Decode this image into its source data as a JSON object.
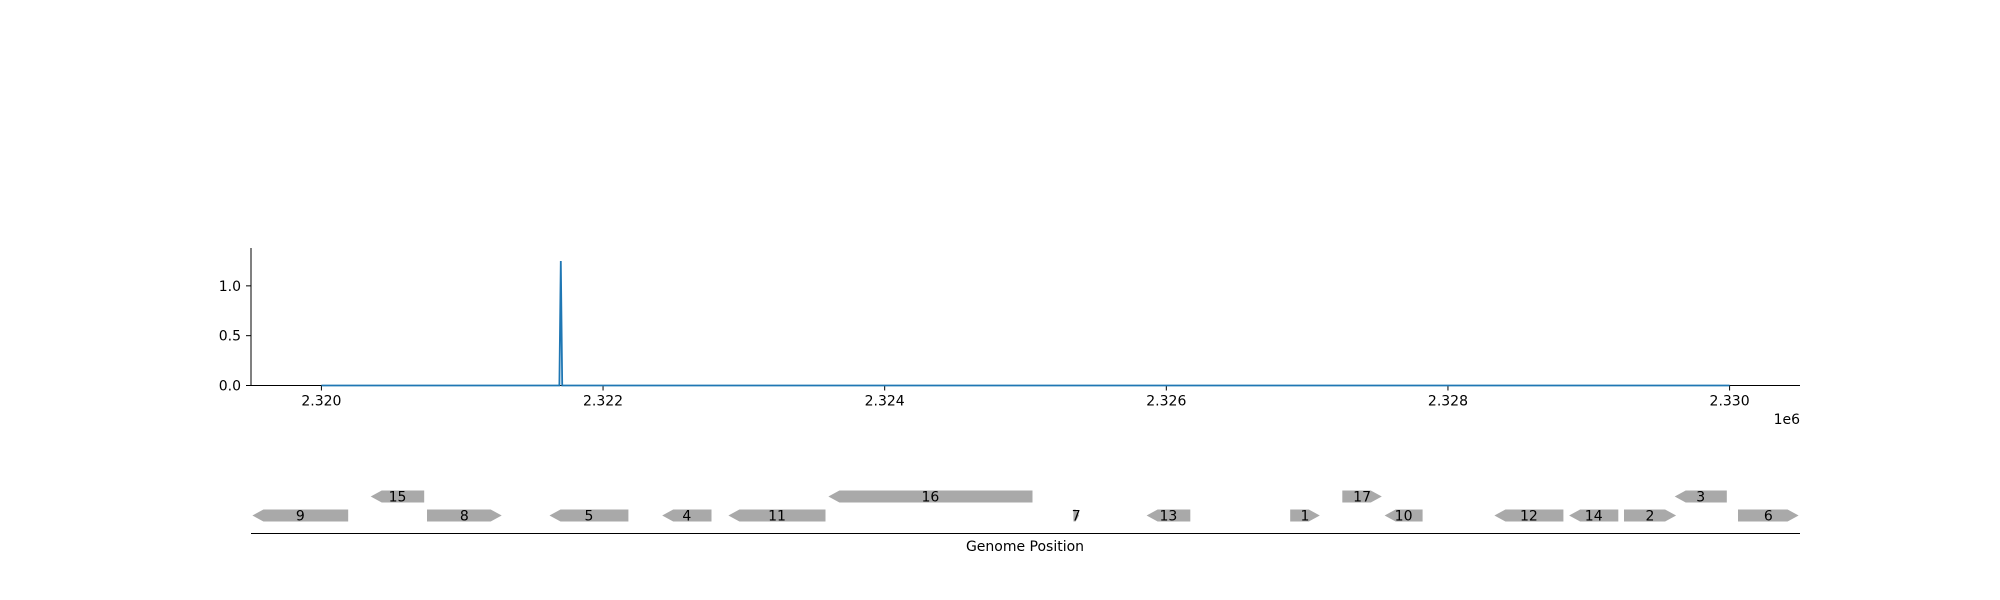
{
  "chart_data": [
    {
      "type": "line",
      "title": "",
      "xlabel": "",
      "ylabel": "",
      "x_offset_label": "1e6",
      "x_ticks": [
        2320000,
        2322000,
        2324000,
        2326000,
        2328000,
        2330000
      ],
      "x_tick_labels": [
        "2.320",
        "2.322",
        "2.324",
        "2.326",
        "2.328",
        "2.330"
      ],
      "y_ticks": [
        0.0,
        0.5,
        1.0
      ],
      "y_tick_labels": [
        "0.0",
        "0.5",
        "1.0"
      ],
      "xlim": [
        2319500,
        2330500
      ],
      "ylim": [
        0,
        1.38
      ],
      "grid": false,
      "line_color": "#1f77b4",
      "series": [
        {
          "x": [
            2320000,
            2321690,
            2321700,
            2321710,
            2330000
          ],
          "y": [
            0,
            0,
            1.25,
            0,
            0
          ]
        }
      ]
    },
    {
      "type": "gene-track",
      "xlabel": "Genome Position",
      "xlim": [
        2319500,
        2330500
      ],
      "gene_color": "#a9a9a9",
      "genes": [
        {
          "label": "9",
          "start": 2319510,
          "end": 2320190,
          "strand": -1,
          "row": 0
        },
        {
          "label": "15",
          "start": 2320350,
          "end": 2320730,
          "strand": -1,
          "row": 1
        },
        {
          "label": "8",
          "start": 2320750,
          "end": 2321280,
          "strand": 1,
          "row": 0
        },
        {
          "label": "5",
          "start": 2321620,
          "end": 2322180,
          "strand": -1,
          "row": 0
        },
        {
          "label": "4",
          "start": 2322420,
          "end": 2322770,
          "strand": -1,
          "row": 0
        },
        {
          "label": "11",
          "start": 2322890,
          "end": 2323580,
          "strand": -1,
          "row": 0
        },
        {
          "label": "16",
          "start": 2323600,
          "end": 2325050,
          "strand": -1,
          "row": 1
        },
        {
          "label": "7",
          "start": 2325340,
          "end": 2325380,
          "strand": 1,
          "row": 0
        },
        {
          "label": "13",
          "start": 2325860,
          "end": 2326170,
          "strand": -1,
          "row": 0
        },
        {
          "label": "1",
          "start": 2326880,
          "end": 2327090,
          "strand": 1,
          "row": 0
        },
        {
          "label": "17",
          "start": 2327250,
          "end": 2327530,
          "strand": 1,
          "row": 1
        },
        {
          "label": "10",
          "start": 2327550,
          "end": 2327820,
          "strand": -1,
          "row": 0
        },
        {
          "label": "12",
          "start": 2328330,
          "end": 2328820,
          "strand": -1,
          "row": 0
        },
        {
          "label": "14",
          "start": 2328860,
          "end": 2329210,
          "strand": -1,
          "row": 0
        },
        {
          "label": "2",
          "start": 2329250,
          "end": 2329620,
          "strand": 1,
          "row": 0
        },
        {
          "label": "3",
          "start": 2329610,
          "end": 2329980,
          "strand": -1,
          "row": 1
        },
        {
          "label": "6",
          "start": 2330060,
          "end": 2330490,
          "strand": 1,
          "row": 0
        }
      ]
    }
  ]
}
